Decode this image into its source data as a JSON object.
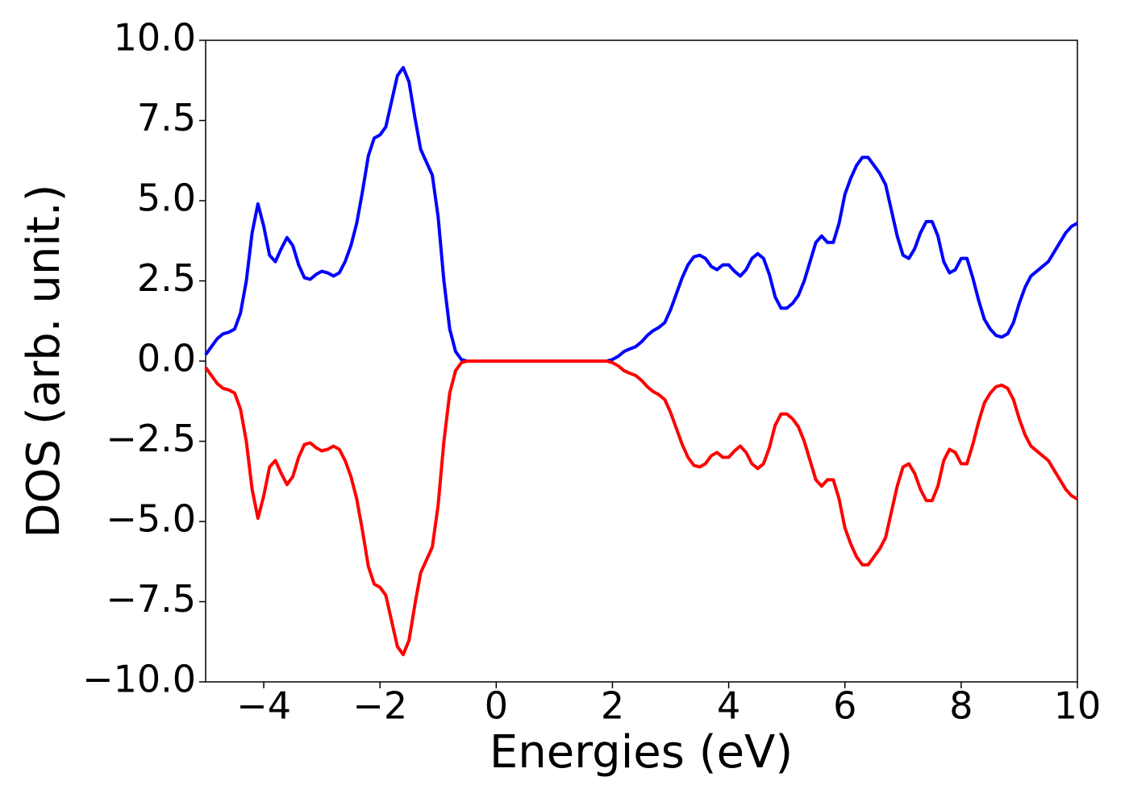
{
  "chart_data": {
    "type": "line",
    "xlabel": "Energies (eV)",
    "ylabel": "DOS (arb. unit.)",
    "x": [
      -5.0,
      -4.9,
      -4.8,
      -4.7,
      -4.6,
      -4.5,
      -4.4,
      -4.3,
      -4.2,
      -4.1,
      -4.0,
      -3.9,
      -3.8,
      -3.7,
      -3.6,
      -3.5,
      -3.4,
      -3.3,
      -3.2,
      -3.1,
      -3.0,
      -2.9,
      -2.8,
      -2.7,
      -2.6,
      -2.5,
      -2.4,
      -2.3,
      -2.2,
      -2.1,
      -2.0,
      -1.9,
      -1.8,
      -1.7,
      -1.6,
      -1.5,
      -1.4,
      -1.3,
      -1.2,
      -1.1,
      -1.0,
      -0.9,
      -0.8,
      -0.7,
      -0.6,
      -0.5,
      0,
      0.5,
      1.0,
      1.5,
      1.9,
      2.0,
      2.1,
      2.2,
      2.3,
      2.4,
      2.5,
      2.6,
      2.7,
      2.8,
      2.9,
      3.0,
      3.1,
      3.2,
      3.3,
      3.4,
      3.5,
      3.6,
      3.7,
      3.8,
      3.9,
      4.0,
      4.1,
      4.2,
      4.3,
      4.4,
      4.5,
      4.6,
      4.7,
      4.8,
      4.9,
      5.0,
      5.1,
      5.2,
      5.3,
      5.4,
      5.5,
      5.6,
      5.7,
      5.8,
      5.9,
      6.0,
      6.1,
      6.2,
      6.3,
      6.4,
      6.5,
      6.6,
      6.7,
      6.8,
      6.9,
      7.0,
      7.1,
      7.2,
      7.3,
      7.4,
      7.5,
      7.6,
      7.7,
      7.8,
      7.9,
      8.0,
      8.1,
      8.2,
      8.3,
      8.4,
      8.5,
      8.6,
      8.7,
      8.8,
      8.9,
      9.0,
      9.1,
      9.2,
      9.3,
      9.4,
      9.5,
      9.6,
      9.7,
      9.8,
      9.9,
      10.0
    ],
    "series": [
      {
        "color": "#0000ff",
        "values": [
          0.2,
          0.45,
          0.7,
          0.85,
          0.9,
          1.0,
          1.5,
          2.5,
          4.0,
          4.9,
          4.2,
          3.3,
          3.1,
          3.5,
          3.85,
          3.6,
          3.0,
          2.6,
          2.55,
          2.7,
          2.8,
          2.75,
          2.65,
          2.75,
          3.1,
          3.6,
          4.3,
          5.3,
          6.4,
          6.95,
          7.05,
          7.3,
          8.1,
          8.9,
          9.15,
          8.7,
          7.6,
          6.6,
          6.2,
          5.8,
          4.5,
          2.5,
          1.0,
          0.3,
          0.05,
          0,
          0,
          0,
          0,
          0,
          0,
          0.05,
          0.15,
          0.3,
          0.38,
          0.45,
          0.6,
          0.8,
          0.95,
          1.05,
          1.2,
          1.6,
          2.1,
          2.6,
          3.0,
          3.25,
          3.3,
          3.2,
          2.95,
          2.85,
          3.0,
          3.0,
          2.8,
          2.65,
          2.85,
          3.2,
          3.35,
          3.2,
          2.7,
          2.0,
          1.65,
          1.65,
          1.8,
          2.05,
          2.5,
          3.1,
          3.7,
          3.9,
          3.7,
          3.7,
          4.3,
          5.2,
          5.7,
          6.1,
          6.35,
          6.35,
          6.1,
          5.85,
          5.5,
          4.7,
          3.9,
          3.3,
          3.2,
          3.5,
          4.0,
          4.35,
          4.35,
          3.9,
          3.1,
          2.75,
          2.85,
          3.2,
          3.2,
          2.6,
          1.9,
          1.3,
          1.0,
          0.8,
          0.75,
          0.85,
          1.2,
          1.8,
          2.3,
          2.65,
          2.8,
          2.95,
          3.1,
          3.4,
          3.7,
          4.0,
          4.2,
          4.3
        ]
      },
      {
        "color": "#ff0000",
        "values": [
          -0.2,
          -0.45,
          -0.7,
          -0.85,
          -0.9,
          -1.0,
          -1.5,
          -2.5,
          -4.0,
          -4.9,
          -4.2,
          -3.3,
          -3.1,
          -3.5,
          -3.85,
          -3.6,
          -3.0,
          -2.6,
          -2.55,
          -2.7,
          -2.8,
          -2.75,
          -2.65,
          -2.75,
          -3.1,
          -3.6,
          -4.3,
          -5.3,
          -6.4,
          -6.95,
          -7.05,
          -7.3,
          -8.1,
          -8.9,
          -9.15,
          -8.7,
          -7.6,
          -6.6,
          -6.2,
          -5.8,
          -4.5,
          -2.5,
          -1.0,
          -0.3,
          -0.05,
          0,
          0,
          0,
          0,
          0,
          0,
          -0.05,
          -0.15,
          -0.3,
          -0.38,
          -0.45,
          -0.6,
          -0.8,
          -0.95,
          -1.05,
          -1.2,
          -1.6,
          -2.1,
          -2.6,
          -3.0,
          -3.25,
          -3.3,
          -3.2,
          -2.95,
          -2.85,
          -3.0,
          -3.0,
          -2.8,
          -2.65,
          -2.85,
          -3.2,
          -3.35,
          -3.2,
          -2.7,
          -2.0,
          -1.65,
          -1.65,
          -1.8,
          -2.05,
          -2.5,
          -3.1,
          -3.7,
          -3.9,
          -3.7,
          -3.7,
          -4.3,
          -5.2,
          -5.7,
          -6.1,
          -6.35,
          -6.35,
          -6.1,
          -5.85,
          -5.5,
          -4.7,
          -3.9,
          -3.3,
          -3.2,
          -3.5,
          -4.0,
          -4.35,
          -4.35,
          -3.9,
          -3.1,
          -2.75,
          -2.85,
          -3.2,
          -3.2,
          -2.6,
          -1.9,
          -1.3,
          -1.0,
          -0.8,
          -0.75,
          -0.85,
          -1.2,
          -1.8,
          -2.3,
          -2.65,
          -2.8,
          -2.95,
          -3.1,
          -3.4,
          -3.7,
          -4.0,
          -4.2,
          -4.3
        ]
      }
    ],
    "xlim": [
      -5,
      10
    ],
    "xticks": [
      {
        "value": -4,
        "label": "−4"
      },
      {
        "value": -2,
        "label": "−2"
      },
      0,
      2,
      4,
      6,
      8,
      10
    ],
    "ylim": [
      -10,
      10
    ],
    "yticks": [
      {
        "value": 10,
        "label": "10.0"
      },
      {
        "value": 7.5,
        "label": "7.5"
      },
      {
        "value": 5,
        "label": "5.0"
      },
      {
        "value": 2.5,
        "label": "2.5"
      },
      {
        "value": 0,
        "label": "0.0"
      },
      {
        "value": -2.5,
        "label": "−2.5"
      },
      {
        "value": -5,
        "label": "−5.0"
      },
      {
        "value": -7.5,
        "label": "−7.5"
      },
      {
        "value": -10,
        "label": "−10.0"
      }
    ],
    "grid": false
  }
}
